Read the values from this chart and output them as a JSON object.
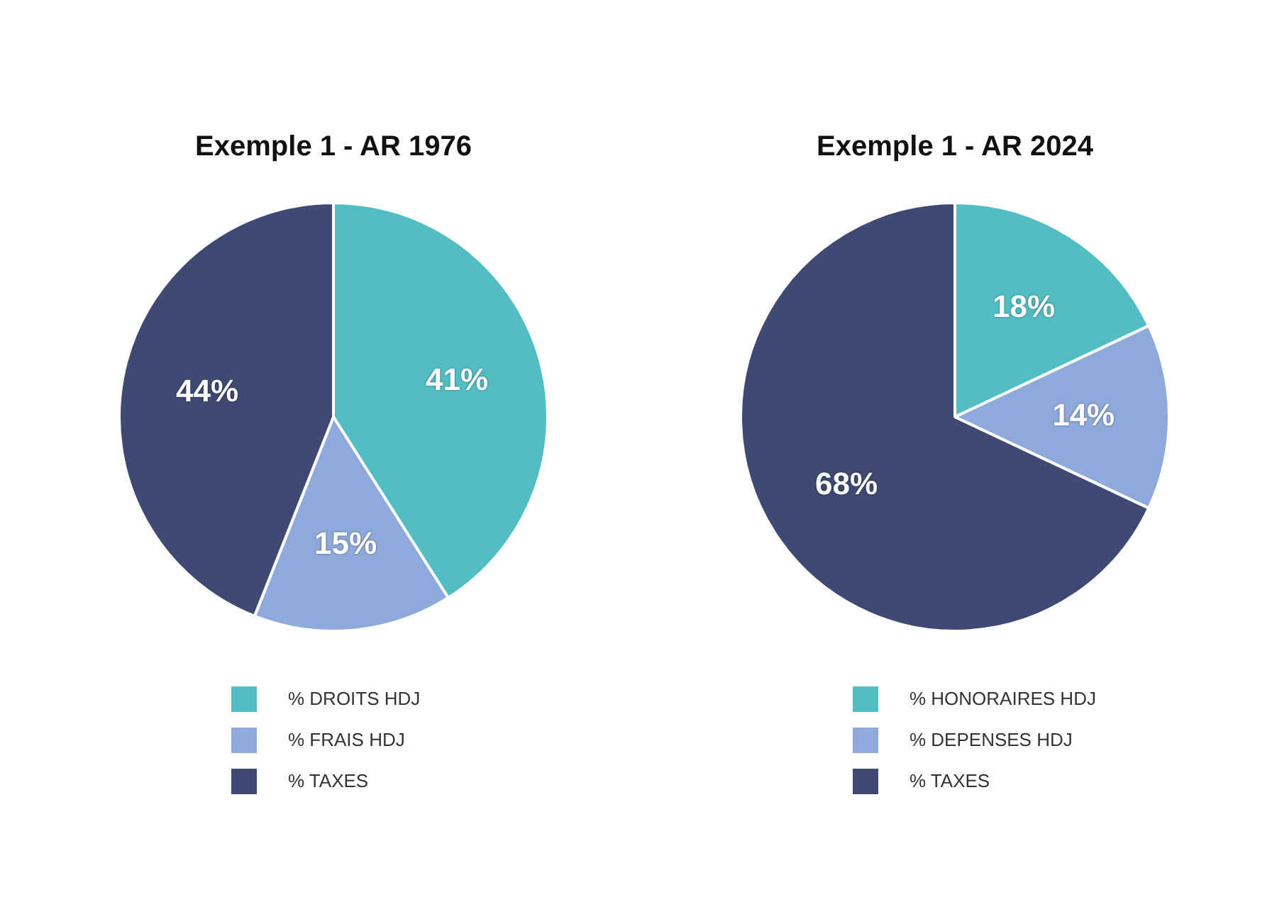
{
  "chart_data": [
    {
      "type": "pie",
      "title": "Exemple 1 - AR 1976",
      "categories": [
        "% DROITS HDJ",
        "% FRAIS HDJ",
        "% TAXES"
      ],
      "values": [
        41,
        15,
        44
      ],
      "value_labels": [
        "41%",
        "15%",
        "44%"
      ],
      "colors": [
        "#52bec4",
        "#8ea9db",
        "#3f4a74"
      ],
      "legend": "bottom"
    },
    {
      "type": "pie",
      "title": "Exemple 1 - AR 2024",
      "categories": [
        "% HONORAIRES HDJ",
        "% DEPENSES HDJ",
        "% TAXES"
      ],
      "values": [
        18,
        14,
        68
      ],
      "value_labels": [
        "18%",
        "14%",
        "68%"
      ],
      "colors": [
        "#52bec4",
        "#8ea9db",
        "#3f4a74"
      ],
      "legend": "bottom"
    }
  ]
}
